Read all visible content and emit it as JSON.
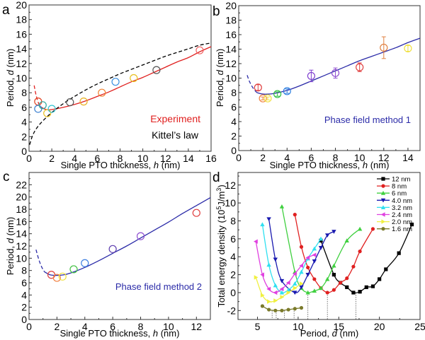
{
  "chart_data": [
    {
      "panel": "a",
      "type": "scatter",
      "xlabel": "Single PTO thickness, h (nm)",
      "ylabel": "Period, d (nm)",
      "xlim": [
        0,
        16
      ],
      "ylim": [
        0,
        20
      ],
      "xticks": [
        0,
        2,
        4,
        6,
        8,
        10,
        12,
        14,
        16
      ],
      "yticks": [
        0,
        2,
        4,
        6,
        8,
        10,
        12,
        14,
        16,
        18,
        20
      ],
      "grid": false,
      "legend_position": "bottom-right",
      "legend": [
        {
          "label": "Experiment",
          "color": "#e0201f"
        },
        {
          "label": "Kittel's law",
          "color": "#000000"
        }
      ],
      "points": [
        {
          "x": 0.8,
          "y": 6.8,
          "color": "#e0401f"
        },
        {
          "x": 0.8,
          "y": 5.8,
          "color": "#3a7fd0"
        },
        {
          "x": 1.2,
          "y": 6.3,
          "color": "#2fa89a"
        },
        {
          "x": 1.6,
          "y": 5.2,
          "color": "#e8c020"
        },
        {
          "x": 2.0,
          "y": 5.8,
          "color": "#35c3d0"
        },
        {
          "x": 3.6,
          "y": 6.7,
          "color": "#555555"
        },
        {
          "x": 4.8,
          "y": 6.8,
          "color": "#e8b020"
        },
        {
          "x": 6.4,
          "y": 8.0,
          "color": "#f08030"
        },
        {
          "x": 7.6,
          "y": 9.5,
          "color": "#3a8fe0"
        },
        {
          "x": 9.2,
          "y": 10.0,
          "color": "#e8c020"
        },
        {
          "x": 11.2,
          "y": 11.1,
          "color": "#555555"
        },
        {
          "x": 15.0,
          "y": 13.8,
          "color": "#f06060"
        }
      ],
      "series": [
        {
          "name": "Experiment fit",
          "style": "solid",
          "color": "#e0201f",
          "x": [
            1.0,
            1.5,
            2.0,
            3.0,
            4.0,
            5.0,
            6.0,
            7.0,
            8.0,
            9.0,
            10.0,
            11.0,
            12.0,
            13.0,
            14.0,
            15.0,
            16.0
          ],
          "y": [
            6.1,
            5.7,
            5.7,
            6.0,
            6.4,
            6.9,
            7.5,
            8.1,
            8.8,
            9.5,
            10.1,
            10.8,
            11.5,
            12.2,
            12.8,
            13.6,
            14.3
          ]
        },
        {
          "name": "Experiment extrapolation",
          "style": "dashed",
          "color": "#e0201f",
          "x": [
            0.45,
            0.6,
            0.8,
            1.0
          ],
          "y": [
            9.0,
            7.8,
            6.7,
            6.1
          ]
        },
        {
          "name": "Kittel's law",
          "style": "dashed",
          "color": "#000000",
          "x": [
            0.05,
            0.3,
            0.6,
            1.0,
            1.5,
            2.0,
            3.0,
            4.0,
            5.0,
            6.0,
            7.0,
            8.0,
            9.0,
            10.0,
            11.0,
            12.0,
            13.0,
            14.0,
            15.0,
            16.0
          ],
          "y": [
            0.9,
            2.1,
            3.0,
            3.8,
            4.6,
            5.3,
            6.5,
            7.5,
            8.4,
            9.2,
            9.9,
            10.6,
            11.2,
            11.8,
            12.4,
            13.0,
            13.5,
            14.0,
            14.5,
            14.8
          ]
        }
      ]
    },
    {
      "panel": "b",
      "type": "scatter",
      "xlabel": "Single PTO thickness, h (nm)",
      "ylabel": "Period, d (nm)",
      "xlim": [
        0,
        15
      ],
      "ylim": [
        0,
        20
      ],
      "xticks": [
        0,
        2,
        4,
        6,
        8,
        10,
        12,
        14
      ],
      "yticks": [
        0,
        2,
        4,
        6,
        8,
        10,
        12,
        14,
        16,
        18,
        20
      ],
      "grid": false,
      "legend_position": "bottom-right",
      "annotation": {
        "text": "Phase field method 1",
        "color": "#2b2ba8"
      },
      "points": [
        {
          "x": 1.6,
          "y": 8.7,
          "err": 0.4,
          "color": "#e04040"
        },
        {
          "x": 2.0,
          "y": 7.2,
          "err": 0.2,
          "color": "#f08040"
        },
        {
          "x": 2.4,
          "y": 7.2,
          "err": 0.2,
          "color": "#f0e040"
        },
        {
          "x": 3.2,
          "y": 7.8,
          "err": 0.3,
          "color": "#30c040"
        },
        {
          "x": 4.0,
          "y": 8.2,
          "err": 0.3,
          "color": "#3080e0"
        },
        {
          "x": 6.0,
          "y": 10.3,
          "err": 0.8,
          "color": "#8040d0"
        },
        {
          "x": 8.0,
          "y": 10.7,
          "err": 0.7,
          "color": "#9050d0"
        },
        {
          "x": 10.0,
          "y": 11.5,
          "err": 0.6,
          "color": "#e04040"
        },
        {
          "x": 12.0,
          "y": 14.2,
          "err": 1.5,
          "color": "#e08040"
        },
        {
          "x": 14.0,
          "y": 14.1,
          "err": 0.4,
          "color": "#f0e040"
        }
      ],
      "series": [
        {
          "name": "Phase field method 1",
          "style": "solid",
          "color": "#2b2ba8",
          "x": [
            1.5,
            2.0,
            2.5,
            3.0,
            4.0,
            5.0,
            6.0,
            7.0,
            8.0,
            9.0,
            10.0,
            11.0,
            12.0,
            13.0,
            14.0,
            15.0
          ],
          "y": [
            8.0,
            7.8,
            7.8,
            7.9,
            8.3,
            8.9,
            9.6,
            10.3,
            11.0,
            11.7,
            12.4,
            13.0,
            13.6,
            14.2,
            14.9,
            15.5
          ]
        },
        {
          "name": "Phase field method 1 extrapolation",
          "style": "dashed",
          "color": "#2b2ba8",
          "x": [
            0.7,
            0.9,
            1.2,
            1.5
          ],
          "y": [
            10.4,
            9.5,
            8.6,
            8.0
          ]
        }
      ]
    },
    {
      "panel": "c",
      "type": "scatter",
      "xlabel": "Single PTO thickness, h (nm)",
      "ylabel": "Period, d (nm)",
      "xlim": [
        0,
        13
      ],
      "ylim": [
        0,
        24
      ],
      "xticks": [
        0,
        2,
        4,
        6,
        8,
        10,
        12
      ],
      "yticks": [
        0,
        2,
        4,
        6,
        8,
        10,
        12,
        14,
        16,
        18,
        20,
        22
      ],
      "grid": false,
      "legend_position": "bottom-right",
      "annotation": {
        "text": "Phase field method 2",
        "color": "#2b2ba8"
      },
      "points": [
        {
          "x": 1.6,
          "y": 7.3,
          "color": "#e04040"
        },
        {
          "x": 2.0,
          "y": 6.8,
          "color": "#f08040"
        },
        {
          "x": 2.4,
          "y": 7.0,
          "color": "#f0e040"
        },
        {
          "x": 3.2,
          "y": 8.2,
          "color": "#40c040"
        },
        {
          "x": 4.0,
          "y": 9.2,
          "color": "#4080e0"
        },
        {
          "x": 6.0,
          "y": 11.5,
          "color": "#6040b0"
        },
        {
          "x": 8.0,
          "y": 13.6,
          "color": "#9050d0"
        },
        {
          "x": 12.0,
          "y": 17.4,
          "color": "#e04040"
        }
      ],
      "series": [
        {
          "name": "Phase field method 2",
          "style": "solid",
          "color": "#2b2ba8",
          "x": [
            1.1,
            1.5,
            2.0,
            2.5,
            3.0,
            4.0,
            5.0,
            6.0,
            7.0,
            8.0,
            9.0,
            10.0,
            11.0,
            12.0,
            13.0
          ],
          "y": [
            7.8,
            7.3,
            7.2,
            7.3,
            7.6,
            8.5,
            9.6,
            10.8,
            12.0,
            13.3,
            14.6,
            15.9,
            17.3,
            18.6,
            19.9
          ]
        },
        {
          "name": "Phase field method 2 extrapolation",
          "style": "dashed",
          "color": "#2b2ba8",
          "x": [
            0.5,
            0.7,
            0.9,
            1.1
          ],
          "y": [
            11.4,
            9.8,
            8.6,
            7.8
          ]
        }
      ]
    },
    {
      "panel": "d",
      "type": "line",
      "xlabel": "Period, d (nm)",
      "ylabel": "Total energy density (10^5 J/m^3)",
      "xlim": [
        2.6,
        25
      ],
      "ylim": [
        -3,
        13.4
      ],
      "xticks": [
        5,
        10,
        15,
        20,
        25
      ],
      "yticks": [
        -2,
        0,
        2,
        4,
        6,
        8,
        10,
        12
      ],
      "grid": false,
      "legend_position": "top-right",
      "minima_markers": [
        6.8,
        7.3,
        8.3,
        9.5,
        11.2,
        13.6,
        17.1
      ],
      "series": [
        {
          "name": "12 nm",
          "color": "#000000",
          "marker": "square",
          "x": [
            12.8,
            14.4,
            15.2,
            16.0,
            16.8,
            17.6,
            18.4,
            19.2,
            20.0,
            20.8,
            22.4,
            24.0
          ],
          "y": [
            5.8,
            2.0,
            1.1,
            0.6,
            0.0,
            0.1,
            0.6,
            0.7,
            1.5,
            2.6,
            4.4,
            7.6
          ]
        },
        {
          "name": "8 nm",
          "color": "#e02020",
          "marker": "circle",
          "x": [
            9.6,
            10.4,
            11.2,
            12.0,
            12.8,
            13.6,
            14.4,
            15.2,
            16.0,
            16.8,
            17.6,
            19.2
          ],
          "y": [
            8.7,
            5.1,
            2.8,
            1.5,
            0.5,
            0.0,
            0.3,
            1.1,
            1.6,
            2.9,
            4.6,
            7.1
          ]
        },
        {
          "name": "6 nm",
          "color": "#40d040",
          "marker": "triangle-up",
          "x": [
            8.0,
            9.6,
            10.4,
            11.2,
            12.0,
            12.8,
            13.6,
            14.4,
            16.0,
            17.6
          ],
          "y": [
            9.6,
            2.3,
            0.5,
            0.0,
            0.2,
            0.5,
            1.5,
            3.0,
            5.8,
            7.1
          ]
        },
        {
          "name": "4.0 nm",
          "color": "#1a1ab0",
          "marker": "triangle-down",
          "x": [
            6.4,
            7.2,
            8.0,
            9.6,
            10.4,
            11.2,
            12.0,
            12.8,
            13.6,
            14.4
          ],
          "y": [
            8.2,
            3.7,
            1.3,
            0.0,
            0.6,
            2.0,
            3.5,
            5.0,
            6.4,
            6.8
          ]
        },
        {
          "name": "3.2 nm",
          "color": "#30e0f0",
          "marker": "triangle-up",
          "x": [
            5.6,
            6.4,
            7.2,
            8.0,
            8.8,
            9.6,
            10.4,
            11.2,
            12.0,
            12.8
          ],
          "y": [
            7.6,
            3.1,
            0.8,
            0.0,
            0.3,
            1.0,
            2.3,
            3.8,
            4.9,
            6.0
          ]
        },
        {
          "name": "2.4 nm",
          "color": "#e040e0",
          "marker": "triangle-left",
          "x": [
            4.8,
            5.6,
            6.4,
            7.2,
            8.0,
            8.8,
            9.6,
            10.4,
            11.2,
            12.0
          ],
          "y": [
            5.7,
            2.0,
            0.4,
            0.0,
            0.4,
            1.1,
            2.1,
            3.0,
            3.9,
            4.2
          ]
        },
        {
          "name": "2.0 nm",
          "color": "#f0f040",
          "marker": "triangle-right",
          "x": [
            4.8,
            5.6,
            6.4,
            7.2,
            8.0,
            8.8,
            9.6,
            10.4
          ],
          "y": [
            1.7,
            -0.3,
            -1.0,
            -0.9,
            -0.5,
            0.0,
            0.5,
            1.0
          ]
        },
        {
          "name": "1.6 nm",
          "color": "#7a7a2a",
          "marker": "circle",
          "x": [
            5.6,
            6.4,
            7.2,
            8.0,
            8.8,
            9.6,
            10.4
          ],
          "y": [
            -1.5,
            -1.9,
            -2.0,
            -2.0,
            -1.9,
            -1.8,
            -1.7
          ]
        }
      ]
    }
  ],
  "panel_labels": [
    "a",
    "b",
    "c",
    "d"
  ],
  "text": {
    "a_xlabel_prefix": "Single PTO thickness, ",
    "a_xlabel_var": "h",
    "a_xlabel_suffix": " (nm)",
    "ylabel_prefix": "Period, ",
    "ylabel_var": "d",
    "ylabel_suffix": " (nm)",
    "d_xlabel_prefix": "Period, ",
    "d_xlabel_var": "d",
    "d_xlabel_suffix": " (nm)",
    "d_ylabel_main": "Total energy density  (10",
    "d_ylabel_sup1": "5",
    "d_ylabel_mid": "J/m",
    "d_ylabel_sup2": "3",
    "d_ylabel_end": ")",
    "legend_experiment": "Experiment",
    "legend_kittel": "Kittel’s law",
    "b_annotation": "Phase field method 1",
    "c_annotation": "Phase field method 2"
  }
}
